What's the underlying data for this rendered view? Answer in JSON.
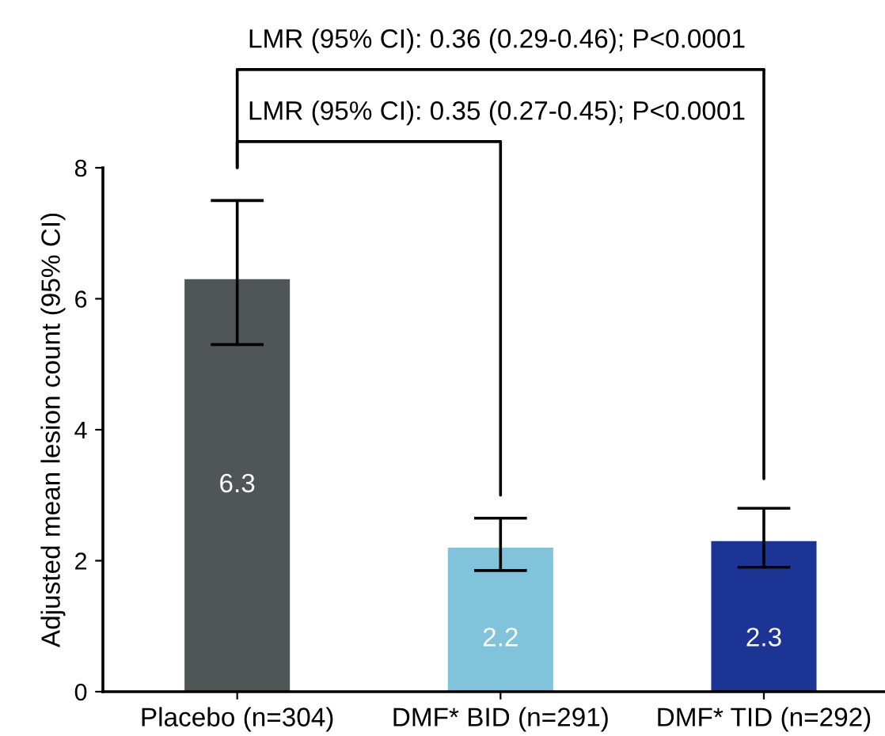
{
  "chart_data": {
    "type": "bar",
    "ylabel": "Adjusted mean lesion count (95% CI)",
    "categories": [
      "Placebo (n=304)",
      "DMF* BID (n=291)",
      "DMF* TID (n=292)"
    ],
    "values": [
      6.3,
      2.2,
      2.3
    ],
    "colors": [
      "#505556",
      "#82c3dc",
      "#1c3594"
    ],
    "errors": [
      [
        5.3,
        7.5
      ],
      [
        1.85,
        2.65
      ],
      [
        1.9,
        2.8
      ]
    ],
    "data_labels": true,
    "ylim": [
      0,
      8
    ],
    "yticks": [
      0,
      2,
      4,
      6,
      8
    ],
    "grid": false,
    "legend": false,
    "annotations": [
      "LMR (95% CI): 0.35 (0.27-0.45); P<0.0001",
      "LMR (95% CI): 0.36 (0.29-0.46); P<0.0001"
    ]
  }
}
